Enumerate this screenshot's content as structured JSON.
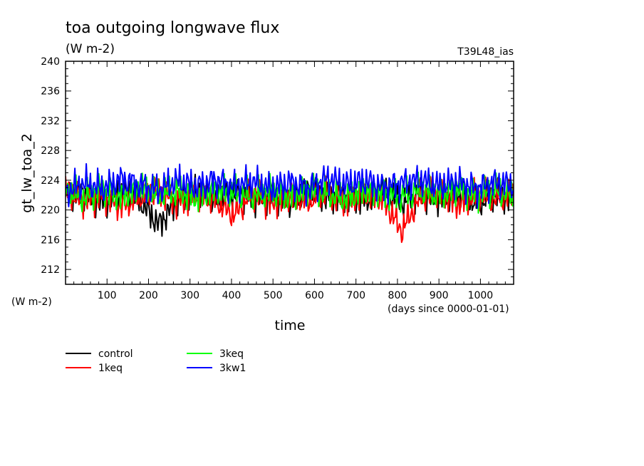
{
  "chart_data": {
    "type": "line",
    "title": "toa outgoing longwave flux",
    "units": "(W m-2)",
    "run_label": "T39L48_ias",
    "ylabel": "gt_lw_toa_2",
    "yunits": "(W m-2)",
    "xlabel": "time",
    "xunits": "(days since 0000-01-01)",
    "xlim": [
      0,
      1080
    ],
    "ylim": [
      210,
      240
    ],
    "x_ticks": [
      100,
      200,
      300,
      400,
      500,
      600,
      700,
      800,
      900,
      1000
    ],
    "y_ticks": [
      212,
      216,
      220,
      224,
      228,
      232,
      236,
      240
    ],
    "grid": false,
    "legend_position": "bottom",
    "series": [
      {
        "name": "control",
        "color": "#000000",
        "x": [
          0,
          45,
          90,
          135,
          180,
          225,
          270,
          315,
          360,
          405,
          450,
          495,
          540,
          585,
          630,
          675,
          720,
          765,
          810,
          855,
          900,
          945,
          990,
          1035,
          1080
        ],
        "y": [
          221.8,
          222.4,
          221.0,
          222.6,
          221.2,
          218.0,
          221.5,
          222.8,
          221.2,
          222.3,
          221.6,
          222.1,
          221.1,
          222.5,
          221.7,
          222.0,
          221.4,
          222.7,
          221.0,
          222.2,
          221.6,
          222.4,
          220.8,
          222.0,
          221.5
        ]
      },
      {
        "name": "1keq",
        "color": "#ff0000",
        "x": [
          0,
          45,
          90,
          135,
          180,
          225,
          270,
          315,
          360,
          405,
          450,
          495,
          540,
          585,
          630,
          675,
          720,
          765,
          810,
          855,
          900,
          945,
          990,
          1035,
          1080
        ],
        "y": [
          222.5,
          221.2,
          222.0,
          220.6,
          221.8,
          222.4,
          221.0,
          222.2,
          221.4,
          219.3,
          222.3,
          220.9,
          221.9,
          221.3,
          222.1,
          221.0,
          222.4,
          221.5,
          217.2,
          221.7,
          222.5,
          220.8,
          222.0,
          221.5,
          221.9
        ]
      },
      {
        "name": "3keq",
        "color": "#00ff00",
        "x": [
          0,
          45,
          90,
          135,
          180,
          225,
          270,
          315,
          360,
          405,
          450,
          495,
          540,
          585,
          630,
          675,
          720,
          765,
          810,
          855,
          900,
          945,
          990,
          1035,
          1080
        ],
        "y": [
          222.7,
          221.6,
          222.8,
          221.9,
          223.0,
          222.0,
          222.5,
          221.7,
          222.9,
          222.3,
          221.8,
          222.6,
          221.9,
          222.8,
          222.2,
          221.4,
          222.7,
          222.3,
          221.9,
          222.6,
          222.0,
          223.0,
          222.1,
          222.7,
          221.9
        ]
      },
      {
        "name": "3kw1",
        "color": "#0000ff",
        "x": [
          0,
          45,
          90,
          135,
          180,
          225,
          270,
          315,
          360,
          405,
          450,
          495,
          540,
          585,
          630,
          675,
          720,
          765,
          810,
          855,
          900,
          945,
          990,
          1035,
          1080
        ],
        "y": [
          222.4,
          223.6,
          222.9,
          224.1,
          223.3,
          222.7,
          223.9,
          223.1,
          224.0,
          223.2,
          223.8,
          222.8,
          223.7,
          223.0,
          224.2,
          223.4,
          223.9,
          223.1,
          223.6,
          224.0,
          223.2,
          223.8,
          222.9,
          223.7,
          223.3
        ]
      }
    ]
  }
}
